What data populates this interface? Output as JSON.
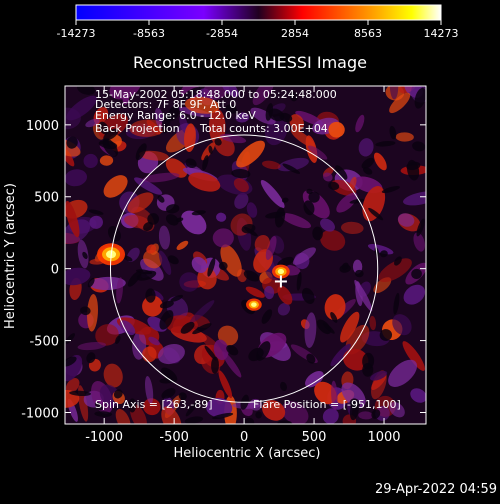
{
  "chart_data": {
    "type": "heatmap",
    "title": "Reconstructed RHESSI Image",
    "xlabel": "Heliocentric X (arcsec)",
    "ylabel": "Heliocentric Y (arcsec)",
    "xlim": [
      -1280,
      1300
    ],
    "ylim": [
      -1080,
      1270
    ],
    "x_ticks": [
      -1000,
      -500,
      0,
      500,
      1000
    ],
    "y_ticks": [
      -1000,
      -500,
      0,
      500,
      1000
    ],
    "colorbar": {
      "min": -14273,
      "max": 14273,
      "ticks": [
        -14273,
        -8563,
        -2854,
        2854,
        8563,
        14273
      ],
      "colormap": [
        "#0000ff",
        "#7a00ff",
        "#ff0000",
        "#ffa500",
        "#ffff00",
        "#ffffff"
      ]
    },
    "annotations": [
      "15-May-2002 05:18:48.000 to 05:24:48.000",
      "Detectors: 7F 8F 9F, Att 0",
      "Energy Range: 6.0 - 12.0 keV",
      "Back Projection",
      "Total counts: 3.00E+04"
    ],
    "spin_axis_label": "Spin Axis = [263,-89]",
    "flare_position_label": "Flare Position = [-951,100]",
    "solar_limb_radius_arcsec": 955,
    "spin_axis": [
      263,
      -89
    ],
    "flare_position": [
      -951,
      100
    ],
    "bright_sources": [
      {
        "x": -951,
        "y": 100,
        "value": 14273
      },
      {
        "x": 263,
        "y": -20,
        "value": 9000
      },
      {
        "x": 70,
        "y": -250,
        "value": 8000
      }
    ]
  },
  "footer_timestamp": "29-Apr-2022 04:59"
}
